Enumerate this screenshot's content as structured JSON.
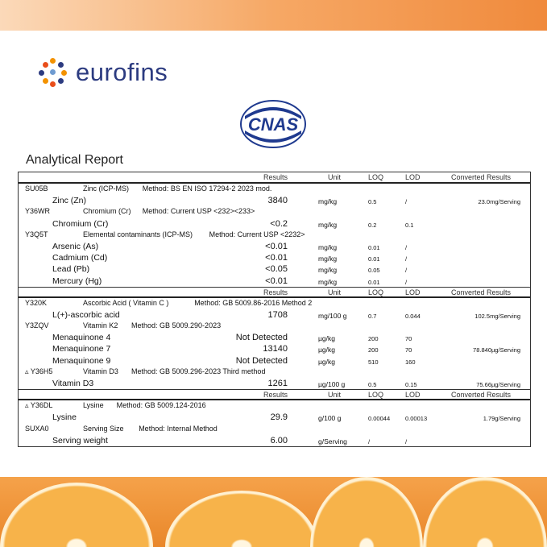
{
  "brand": {
    "logo_text": "eurofins",
    "cnas_text": "CNAS",
    "accent": "#2c3b80",
    "orange": "#f08a3c"
  },
  "title": "Analytical Report",
  "header": {
    "results": "Results",
    "unit": "Unit",
    "loq": "LOQ",
    "lod": "LOD",
    "converted": "Converted Results"
  },
  "sections": [
    {
      "groups": [
        {
          "code": "SU05B",
          "name": "Zinc (ICP-MS)",
          "method": "Method: BS EN ISO 17294-2 2023 mod.",
          "items": [
            {
              "name": "Zinc (Zn)",
              "result": "3840",
              "unit": "mg/kg",
              "loq": "0.5",
              "lod": "/",
              "converted": "23.0mg/Serving"
            }
          ]
        },
        {
          "code": "Y36WR",
          "name": "Chromium (Cr)",
          "method": "Method: Current USP <232><233>",
          "items": [
            {
              "name": "Chromium (Cr)",
              "result": "<0.2",
              "unit": "mg/kg",
              "loq": "0.2",
              "lod": "0.1",
              "converted": ""
            }
          ]
        },
        {
          "code": "Y3Q5T",
          "name": "Elemental contaminants (ICP-MS)",
          "method": "Method: Current USP <2232>",
          "items": [
            {
              "name": "Arsenic (As)",
              "result": "<0.01",
              "unit": "mg/kg",
              "loq": "0.01",
              "lod": "/",
              "converted": ""
            },
            {
              "name": "Cadmium (Cd)",
              "result": "<0.01",
              "unit": "mg/kg",
              "loq": "0.01",
              "lod": "/",
              "converted": ""
            },
            {
              "name": "Lead (Pb)",
              "result": "<0.05",
              "unit": "mg/kg",
              "loq": "0.05",
              "lod": "/",
              "converted": ""
            },
            {
              "name": "Mercury (Hg)",
              "result": "<0.01",
              "unit": "mg/kg",
              "loq": "0.01",
              "lod": "/",
              "converted": ""
            }
          ]
        }
      ]
    },
    {
      "groups": [
        {
          "code": "Y320K",
          "name": "Ascorbic Acid ( Vitamin C )",
          "method": "Method: GB 5009.86-2016 Method 2",
          "items": [
            {
              "name": "L(+)-ascorbic acid",
              "result": "1708",
              "unit": "mg/100 g",
              "loq": "0.7",
              "lod": "0.044",
              "converted": "102.5mg/Serving"
            }
          ]
        },
        {
          "code": "Y3ZQV",
          "name": "Vitamin K2",
          "method": "Method: GB 5009.290-2023",
          "items": [
            {
              "name": "Menaquinone 4",
              "result": "Not Detected",
              "unit": "µg/kg",
              "loq": "200",
              "lod": "70",
              "converted": ""
            },
            {
              "name": "Menaquinone 7",
              "result": "13140",
              "unit": "µg/kg",
              "loq": "200",
              "lod": "70",
              "converted": "78.840µg/Serving"
            },
            {
              "name": "Menaquinone 9",
              "result": "Not Detected",
              "unit": "µg/kg",
              "loq": "510",
              "lod": "160",
              "converted": ""
            }
          ]
        },
        {
          "code": "▵ Y36H5",
          "name": "Vitamin D3",
          "method": "Method: GB 5009.296-2023 Third method",
          "items": [
            {
              "name": "Vitamin D3",
              "result": "1261",
              "unit": "µg/100 g",
              "loq": "0.5",
              "lod": "0.15",
              "converted": "75.66µg/Serving"
            }
          ]
        }
      ]
    },
    {
      "groups": [
        {
          "code": "▵ Y36DL",
          "name": "Lysine",
          "method": "Method: GB 5009.124-2016",
          "items": [
            {
              "name": "Lysine",
              "result": "29.9",
              "unit": "g/100 g",
              "loq": "0.00044",
              "lod": "0.00013",
              "converted": "1.79g/Serving"
            }
          ]
        },
        {
          "code": "SUXA0",
          "name": "Serving Size",
          "method": "Method: Internal Method",
          "items": [
            {
              "name": "Serving weight",
              "result": "6.00",
              "unit": "g/Serving",
              "loq": "/",
              "lod": "/",
              "converted": ""
            }
          ]
        }
      ]
    }
  ]
}
